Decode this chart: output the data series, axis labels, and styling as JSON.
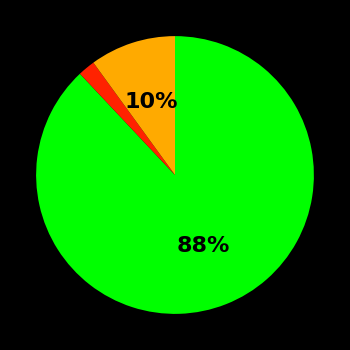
{
  "slices": [
    88,
    2,
    10
  ],
  "colors": [
    "#00ff00",
    "#ff2200",
    "#ffaa00"
  ],
  "labels": [
    "88%",
    "",
    "10%"
  ],
  "label_colors": [
    "#000000",
    "#000000",
    "#000000"
  ],
  "background_color": "#000000",
  "startangle": 90,
  "figsize": [
    3.5,
    3.5
  ],
  "dpi": 100,
  "label_radii": [
    0.55,
    0.5,
    0.55
  ],
  "label_fontsizes": [
    16,
    14,
    16
  ]
}
